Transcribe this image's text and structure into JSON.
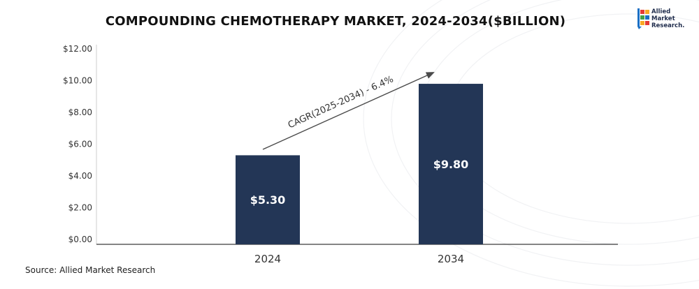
{
  "chart_data": {
    "type": "bar",
    "title": "COMPOUNDING CHEMOTHERAPY MARKET, 2024-2034($BILLION)",
    "categories": [
      "2024",
      "2034"
    ],
    "values": [
      5.3,
      9.8
    ],
    "value_labels": [
      "$5.30",
      "$9.80"
    ],
    "ylim": [
      0,
      12
    ],
    "y_ticks": [
      "$0.00",
      "$2.00",
      "$4.00",
      "$6.00",
      "$8.00",
      "$10.00",
      "$12.00"
    ],
    "xlabel": "",
    "ylabel": "",
    "grid": false,
    "bar_color": "#233656",
    "annotation": "CAGR(2025-2034) - 6.4%"
  },
  "source": "Source: Allied Market Research",
  "logo": {
    "line1": "Allied",
    "line2": "Market",
    "line3": "Research."
  }
}
